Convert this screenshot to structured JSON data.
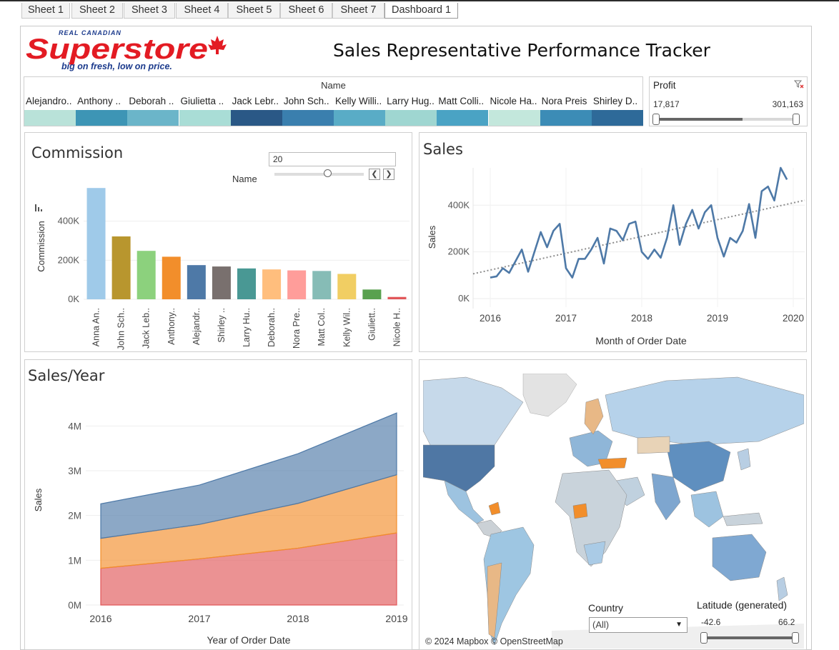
{
  "tabs": [
    "Sheet 1",
    "Sheet 2",
    "Sheet 3",
    "Sheet 4",
    "Sheet 5",
    "Sheet 6",
    "Sheet 7",
    "Dashboard 1"
  ],
  "active_tab": "Dashboard 1",
  "logo": {
    "top": "REAL CANADIAN",
    "main": "Superstore",
    "tagline": "big on fresh, low on price."
  },
  "dashboard_title": "Sales Representative Performance Tracker",
  "name_legend": {
    "header": "Name",
    "items": [
      {
        "label": "Alejandro..",
        "color": "#b9e2d9"
      },
      {
        "label": "Anthony ..",
        "color": "#3d95b5"
      },
      {
        "label": "Deborah ..",
        "color": "#6bb5c9"
      },
      {
        "label": "Giulietta ..",
        "color": "#a9ddd6"
      },
      {
        "label": "Jack Lebr..",
        "color": "#2a5886"
      },
      {
        "label": "John Sch..",
        "color": "#3a7fae"
      },
      {
        "label": "Kelly Willi..",
        "color": "#59acc6"
      },
      {
        "label": "Larry Hug..",
        "color": "#9fd6d1"
      },
      {
        "label": "Matt Colli..",
        "color": "#4aa3c4"
      },
      {
        "label": "Nicole Ha..",
        "color": "#c3e7dc"
      },
      {
        "label": "Nora Preis",
        "color": "#3c8cb6"
      },
      {
        "label": "Shirley D..",
        "color": "#2e6a99"
      }
    ]
  },
  "profit_filter": {
    "label": "Profit",
    "min": "17,817",
    "max": "301,163"
  },
  "commission": {
    "title": "Commission",
    "param_value": "20",
    "param_label": "Name",
    "yaxis_label": "Commission",
    "yticks": [
      "0K",
      "200K",
      "400K"
    ]
  },
  "sales_line": {
    "title": "Sales",
    "xlabel": "Month of Order Date",
    "ylabel": "Sales",
    "yticks": [
      "0K",
      "200K",
      "400K"
    ],
    "xticks": [
      "2016",
      "2017",
      "2018",
      "2019",
      "2020"
    ]
  },
  "sales_year": {
    "title": "Sales/Year",
    "xlabel": "Year of Order Date",
    "ylabel": "Sales",
    "yticks": [
      "0M",
      "1M",
      "2M",
      "3M",
      "4M"
    ],
    "xticks": [
      "2016",
      "2017",
      "2018",
      "2019"
    ]
  },
  "map": {
    "country_label": "Country",
    "country_value": "(All)",
    "latitude_label": "Latitude (generated)",
    "latitude_min": "-42.6",
    "latitude_max": "66.2",
    "attribution": "© 2024 Mapbox  © OpenStreetMap"
  },
  "chart_data": [
    {
      "type": "bar",
      "title": "Commission",
      "xlabel": "",
      "ylabel": "Commission",
      "ylim": [
        0,
        600000
      ],
      "categories": [
        "Anna An..",
        "John Sch..",
        "Jack Leb..",
        "Anthony..",
        "Alejandr..",
        "Shirley ..",
        "Larry Hu..",
        "Deborah..",
        "Nora Pre..",
        "Matt Col..",
        "Kelly Wil..",
        "Giuliett..",
        "Nicole H.."
      ],
      "values": [
        570000,
        322000,
        248000,
        218000,
        175000,
        168000,
        158000,
        153000,
        148000,
        145000,
        130000,
        50000,
        12000
      ],
      "colors": [
        "#9fcae9",
        "#b8962e",
        "#8cd17d",
        "#f28e2b",
        "#4e79a7",
        "#79706e",
        "#499894",
        "#ffbe7d",
        "#ff9d9a",
        "#86bcb6",
        "#f1ce63",
        "#59a14f",
        "#e15759"
      ]
    },
    {
      "type": "line",
      "title": "Sales",
      "xlabel": "Month of Order Date",
      "ylabel": "Sales",
      "ylim": [
        0,
        560000
      ],
      "x": [
        "2016-01",
        "2016-02",
        "2016-03",
        "2016-04",
        "2016-05",
        "2016-06",
        "2016-07",
        "2016-08",
        "2016-09",
        "2016-10",
        "2016-11",
        "2016-12",
        "2017-01",
        "2017-02",
        "2017-03",
        "2017-04",
        "2017-05",
        "2017-06",
        "2017-07",
        "2017-08",
        "2017-09",
        "2017-10",
        "2017-11",
        "2017-12",
        "2018-01",
        "2018-02",
        "2018-03",
        "2018-04",
        "2018-05",
        "2018-06",
        "2018-07",
        "2018-08",
        "2018-09",
        "2018-10",
        "2018-11",
        "2018-12",
        "2019-01",
        "2019-02",
        "2019-03",
        "2019-04",
        "2019-05",
        "2019-06",
        "2019-07",
        "2019-08",
        "2019-09",
        "2019-10",
        "2019-11",
        "2019-12"
      ],
      "values": [
        90000,
        95000,
        130000,
        110000,
        160000,
        210000,
        115000,
        200000,
        285000,
        220000,
        290000,
        320000,
        130000,
        90000,
        170000,
        170000,
        210000,
        260000,
        150000,
        300000,
        290000,
        250000,
        320000,
        330000,
        200000,
        170000,
        210000,
        175000,
        260000,
        400000,
        230000,
        320000,
        380000,
        300000,
        370000,
        400000,
        260000,
        180000,
        260000,
        240000,
        290000,
        405000,
        260000,
        460000,
        480000,
        420000,
        560000,
        510000
      ],
      "trend": true,
      "color": "#4e79a7"
    },
    {
      "type": "area",
      "title": "Sales/Year",
      "xlabel": "Year of Order Date",
      "ylabel": "Sales",
      "ylim": [
        0,
        4500000
      ],
      "categories": [
        "2016",
        "2017",
        "2018",
        "2019"
      ],
      "series": [
        {
          "values": [
            820000,
            1030000,
            1270000,
            1610000
          ],
          "color": "#e15759"
        },
        {
          "values": [
            670000,
            770000,
            1000000,
            1300000
          ],
          "color": "#f28e2b"
        },
        {
          "values": [
            770000,
            880000,
            1110000,
            1380000
          ],
          "color": "#4e79a7"
        }
      ]
    }
  ]
}
